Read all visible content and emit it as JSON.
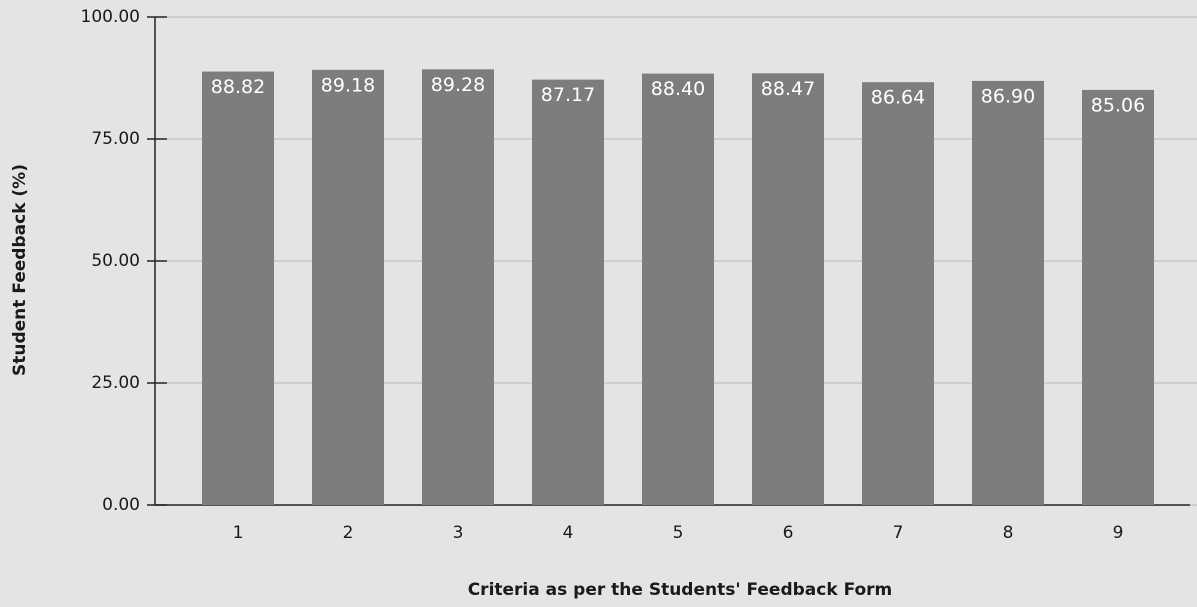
{
  "chart_data": {
    "type": "bar",
    "x_label": "Criteria as per the Students' Feedback Form",
    "y_label": "Student Feedback (%)",
    "categories": [
      "1",
      "2",
      "3",
      "4",
      "5",
      "6",
      "7",
      "8",
      "9"
    ],
    "values": [
      88.82,
      89.18,
      89.28,
      87.17,
      88.4,
      88.47,
      86.64,
      86.9,
      85.06
    ],
    "value_labels": [
      "88.82",
      "89.18",
      "89.28",
      "87.17",
      "88.40",
      "88.47",
      "86.64",
      "86.90",
      "85.06"
    ],
    "color": "#7d7d7d",
    "ylim": [
      0,
      100
    ],
    "yticks": [
      {
        "value": 0,
        "label": "0.00"
      },
      {
        "value": 25,
        "label": "25.00"
      },
      {
        "value": 50,
        "label": "50.00"
      },
      {
        "value": 75,
        "label": "75.00"
      },
      {
        "value": 100,
        "label": "100.00"
      }
    ],
    "grid": true
  }
}
